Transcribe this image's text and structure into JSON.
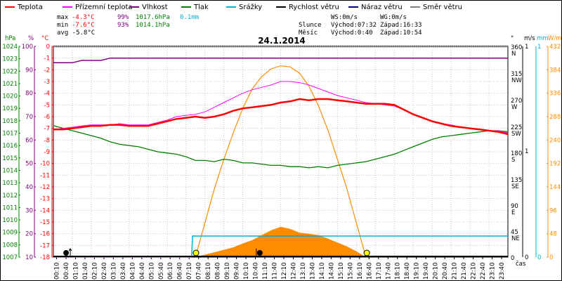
{
  "legend": [
    {
      "label": "Teplota",
      "color": "#ff0000"
    },
    {
      "label": "Přízemní teplota",
      "color": "#ff00ff"
    },
    {
      "label": "Vlhkost",
      "color": "#800080"
    },
    {
      "label": "Tlak",
      "color": "#008000"
    },
    {
      "label": "Srážky",
      "color": "#00b0d8"
    },
    {
      "label": "Rychlost větru",
      "color": "#000000"
    },
    {
      "label": "Náraz větru",
      "color": "#000080"
    },
    {
      "label": "Směr větru",
      "color": "#808080"
    }
  ],
  "stats": {
    "max_temp": "max -4.3°C",
    "max_hum": "99%",
    "max_press": "1017.6hPa",
    "max_rain": "0.1mm",
    "min_temp": "min -7.6°C",
    "min_hum": "93%",
    "min_press": "1014.1hPa",
    "avg_temp": "avg -5.8°C",
    "ws": "WS:0m/s",
    "wg": "WG:0m/s",
    "sun_label": "Slunce",
    "sunrise": "Východ:07:32",
    "sunset": "Západ:16:33",
    "moon_label": "Měsíc",
    "moonrise": "Východ:0:40",
    "moonset": "Západ:10:54"
  },
  "axis_units": {
    "hpa": "hPa",
    "pct": "%",
    "temp": "°C",
    "deg": "°",
    "ms": "m/s",
    "mm": "mm",
    "wm2": "W/m²",
    "time": "čas"
  },
  "chart_data": {
    "type": "line",
    "title": "24.1.2014",
    "x_label": "čas",
    "x_ticks": [
      "00:10",
      "00:40",
      "01:10",
      "01:40",
      "02:10",
      "02:40",
      "03:10",
      "03:40",
      "04:10",
      "04:40",
      "05:10",
      "05:40",
      "06:10",
      "06:40",
      "07:10",
      "07:40",
      "08:10",
      "08:40",
      "09:10",
      "09:40",
      "10:10",
      "10:40",
      "11:10",
      "11:40",
      "12:10",
      "12:40",
      "13:10",
      "13:40",
      "14:10",
      "14:40",
      "15:10",
      "15:40",
      "16:10",
      "16:40",
      "17:10",
      "17:40",
      "18:10",
      "18:40",
      "19:10",
      "19:40",
      "20:10",
      "20:40",
      "21:10",
      "21:40",
      "22:10",
      "22:40",
      "23:10",
      "23:40"
    ],
    "axes": {
      "pressure_hpa": {
        "min": 1007,
        "max": 1024,
        "ticks": [
          1024,
          1023,
          1022,
          1021,
          1020,
          1019,
          1018,
          1017,
          1016,
          1015,
          1014,
          1013,
          1012,
          1011,
          1010,
          1009,
          1008,
          1007
        ]
      },
      "humidity_pct": {
        "min": 10,
        "max": 100,
        "ticks": [
          100,
          90,
          80,
          70,
          60,
          50,
          40,
          30,
          20,
          10
        ]
      },
      "temperature_c": {
        "min": -18,
        "max": 0,
        "ticks": [
          0,
          -1,
          -2,
          -3,
          -4,
          -5,
          -6,
          -7,
          -8,
          -9,
          -10,
          -11,
          -12,
          -13,
          -14,
          -15,
          -16,
          -17,
          -18
        ]
      },
      "wind_dir": {
        "ticks": [
          {
            "deg": "360",
            "dir": "N"
          },
          {
            "deg": "315",
            "dir": "NW"
          },
          {
            "deg": "270",
            "dir": "W"
          },
          {
            "deg": "225",
            "dir": "SW"
          },
          {
            "deg": "180",
            "dir": "S"
          },
          {
            "deg": "135",
            "dir": "SE"
          },
          {
            "deg": "90",
            "dir": "E"
          },
          {
            "deg": "45",
            "dir": "NE"
          },
          {
            "deg": "0",
            "dir": ""
          }
        ]
      },
      "wind_ms": {
        "ticks": [
          "1",
          "1",
          "0"
        ]
      },
      "rain_mm": {
        "ticks": [
          "1",
          "0"
        ]
      },
      "solar_wm2": {
        "min": 0,
        "max": 432,
        "ticks": [
          432,
          384,
          336,
          288,
          240,
          192,
          144,
          96,
          48,
          0
        ]
      }
    },
    "series": [
      {
        "name": "Teplota",
        "axis": "temperature_c",
        "color": "#ff0000",
        "points": [
          [
            0,
            -7.1
          ],
          [
            0.5,
            -7.1
          ],
          [
            1,
            -7.0
          ],
          [
            1.5,
            -6.9
          ],
          [
            2,
            -6.8
          ],
          [
            2.5,
            -6.8
          ],
          [
            3,
            -6.7
          ],
          [
            3.5,
            -6.7
          ],
          [
            4,
            -6.8
          ],
          [
            4.5,
            -6.8
          ],
          [
            5,
            -6.8
          ],
          [
            5.5,
            -6.6
          ],
          [
            6,
            -6.4
          ],
          [
            6.5,
            -6.2
          ],
          [
            7,
            -6.1
          ],
          [
            7.5,
            -6.0
          ],
          [
            8,
            -6.1
          ],
          [
            8.5,
            -6.0
          ],
          [
            9,
            -5.8
          ],
          [
            9.5,
            -5.5
          ],
          [
            10,
            -5.3
          ],
          [
            10.5,
            -5.2
          ],
          [
            11,
            -5.1
          ],
          [
            11.5,
            -5.0
          ],
          [
            12,
            -4.8
          ],
          [
            12.5,
            -4.7
          ],
          [
            13,
            -4.5
          ],
          [
            13.5,
            -4.6
          ],
          [
            14,
            -4.5
          ],
          [
            14.5,
            -4.5
          ],
          [
            15,
            -4.6
          ],
          [
            15.5,
            -4.7
          ],
          [
            16,
            -4.8
          ],
          [
            16.5,
            -4.9
          ],
          [
            17,
            -4.9
          ],
          [
            17.5,
            -4.9
          ],
          [
            18,
            -5.0
          ],
          [
            18.5,
            -5.4
          ],
          [
            19,
            -5.8
          ],
          [
            19.5,
            -6.1
          ],
          [
            20,
            -6.4
          ],
          [
            20.5,
            -6.6
          ],
          [
            21,
            -6.8
          ],
          [
            21.5,
            -6.9
          ],
          [
            22,
            -7.0
          ],
          [
            22.5,
            -7.1
          ],
          [
            23,
            -7.2
          ],
          [
            23.5,
            -7.3
          ],
          [
            24,
            -7.5
          ]
        ]
      },
      {
        "name": "Přízemní teplota",
        "axis": "temperature_c",
        "color": "#ff00ff",
        "points": [
          [
            0,
            -7.1
          ],
          [
            0.5,
            -7.0
          ],
          [
            1,
            -6.9
          ],
          [
            1.5,
            -6.8
          ],
          [
            2,
            -6.7
          ],
          [
            2.5,
            -6.7
          ],
          [
            3,
            -6.7
          ],
          [
            3.5,
            -6.6
          ],
          [
            4,
            -6.7
          ],
          [
            4.5,
            -6.7
          ],
          [
            5,
            -6.7
          ],
          [
            5.5,
            -6.5
          ],
          [
            6,
            -6.3
          ],
          [
            6.5,
            -6.0
          ],
          [
            7,
            -5.9
          ],
          [
            7.5,
            -5.8
          ],
          [
            8,
            -5.6
          ],
          [
            8.5,
            -5.2
          ],
          [
            9,
            -4.8
          ],
          [
            9.5,
            -4.4
          ],
          [
            10,
            -4.0
          ],
          [
            10.5,
            -3.7
          ],
          [
            11,
            -3.5
          ],
          [
            11.5,
            -3.3
          ],
          [
            12,
            -3.0
          ],
          [
            12.5,
            -3.0
          ],
          [
            13,
            -3.1
          ],
          [
            13.5,
            -3.3
          ],
          [
            14,
            -3.6
          ],
          [
            14.5,
            -3.9
          ],
          [
            15,
            -4.2
          ],
          [
            15.5,
            -4.4
          ],
          [
            16,
            -4.6
          ],
          [
            16.5,
            -4.8
          ],
          [
            17,
            -4.9
          ],
          [
            17.5,
            -5.0
          ],
          [
            18,
            -5.1
          ],
          [
            18.5,
            -5.4
          ],
          [
            19,
            -5.8
          ],
          [
            19.5,
            -6.1
          ],
          [
            20,
            -6.4
          ],
          [
            20.5,
            -6.6
          ],
          [
            21,
            -6.7
          ],
          [
            21.5,
            -6.9
          ],
          [
            22,
            -7.0
          ],
          [
            22.5,
            -7.1
          ],
          [
            23,
            -7.2
          ],
          [
            23.5,
            -7.2
          ],
          [
            24,
            -7.4
          ]
        ]
      },
      {
        "name": "Vlhkost",
        "axis": "humidity_pct",
        "color": "#800080",
        "points": [
          [
            0,
            93
          ],
          [
            1,
            93
          ],
          [
            1.5,
            94
          ],
          [
            2,
            94
          ],
          [
            2.5,
            94
          ],
          [
            3,
            95
          ],
          [
            5,
            95
          ],
          [
            7,
            95
          ],
          [
            9,
            95
          ],
          [
            11,
            95
          ],
          [
            13,
            95
          ],
          [
            14,
            95
          ],
          [
            14.5,
            95
          ],
          [
            15,
            95
          ],
          [
            17,
            95
          ],
          [
            19,
            95
          ],
          [
            21,
            95
          ],
          [
            24,
            95
          ]
        ]
      },
      {
        "name": "Tlak",
        "axis": "pressure_hpa",
        "color": "#008000",
        "points": [
          [
            0,
            1017.6
          ],
          [
            0.5,
            1017.4
          ],
          [
            1,
            1017.2
          ],
          [
            1.5,
            1017.0
          ],
          [
            2,
            1016.8
          ],
          [
            2.5,
            1016.6
          ],
          [
            3,
            1016.3
          ],
          [
            3.5,
            1016.1
          ],
          [
            4,
            1016.0
          ],
          [
            4.5,
            1015.9
          ],
          [
            5,
            1015.7
          ],
          [
            5.5,
            1015.5
          ],
          [
            6,
            1015.4
          ],
          [
            6.5,
            1015.3
          ],
          [
            7,
            1015.1
          ],
          [
            7.5,
            1014.8
          ],
          [
            8,
            1014.8
          ],
          [
            8.5,
            1014.7
          ],
          [
            9,
            1014.9
          ],
          [
            9.5,
            1014.8
          ],
          [
            10,
            1014.6
          ],
          [
            10.5,
            1014.6
          ],
          [
            11,
            1014.5
          ],
          [
            11.5,
            1014.4
          ],
          [
            12,
            1014.4
          ],
          [
            12.5,
            1014.3
          ],
          [
            13,
            1014.3
          ],
          [
            13.5,
            1014.2
          ],
          [
            14,
            1014.3
          ],
          [
            14.5,
            1014.2
          ],
          [
            15,
            1014.4
          ],
          [
            15.5,
            1014.5
          ],
          [
            16,
            1014.6
          ],
          [
            16.5,
            1014.7
          ],
          [
            17,
            1014.9
          ],
          [
            17.5,
            1015.1
          ],
          [
            18,
            1015.3
          ],
          [
            18.5,
            1015.6
          ],
          [
            19,
            1015.9
          ],
          [
            19.5,
            1016.2
          ],
          [
            20,
            1016.5
          ],
          [
            20.5,
            1016.7
          ],
          [
            21,
            1016.8
          ],
          [
            21.5,
            1016.9
          ],
          [
            22,
            1017.0
          ],
          [
            22.5,
            1017.1
          ],
          [
            23,
            1017.2
          ],
          [
            23.5,
            1017.2
          ],
          [
            24,
            1017.1
          ]
        ]
      },
      {
        "name": "Srážky",
        "axis": "rain_mm",
        "color": "#00b0d8",
        "points": [
          [
            0,
            0
          ],
          [
            7.3,
            0
          ],
          [
            7.35,
            0.1
          ],
          [
            24,
            0.1
          ]
        ]
      },
      {
        "name": "Sluneční dráha",
        "axis": "solar_wm2",
        "color": "#ff8c00",
        "points": [
          [
            7.5,
            0
          ],
          [
            8,
            70
          ],
          [
            8.5,
            140
          ],
          [
            9,
            200
          ],
          [
            9.5,
            255
          ],
          [
            10,
            305
          ],
          [
            10.5,
            345
          ],
          [
            11,
            370
          ],
          [
            11.5,
            386
          ],
          [
            12,
            392
          ],
          [
            12.5,
            390
          ],
          [
            13,
            377
          ],
          [
            13.5,
            350
          ],
          [
            14,
            310
          ],
          [
            14.5,
            260
          ],
          [
            15,
            200
          ],
          [
            15.5,
            140
          ],
          [
            16,
            70
          ],
          [
            16.5,
            0
          ]
        ]
      },
      {
        "name": "Sluneční záření",
        "axis": "solar_wm2",
        "color": "#ff8c00",
        "points": [
          [
            7.5,
            0
          ],
          [
            8,
            5
          ],
          [
            8.5,
            10
          ],
          [
            9,
            15
          ],
          [
            9.5,
            20
          ],
          [
            10,
            28
          ],
          [
            10.5,
            35
          ],
          [
            11,
            45
          ],
          [
            11.5,
            55
          ],
          [
            12,
            62
          ],
          [
            12.5,
            58
          ],
          [
            13,
            50
          ],
          [
            13.5,
            48
          ],
          [
            14,
            45
          ],
          [
            14.5,
            38
          ],
          [
            15,
            30
          ],
          [
            15.5,
            22
          ],
          [
            16,
            12
          ],
          [
            16.5,
            0
          ]
        ]
      },
      {
        "name": "Směr větru",
        "axis": "wind_dir",
        "color": "#808080",
        "value": 360
      }
    ]
  }
}
